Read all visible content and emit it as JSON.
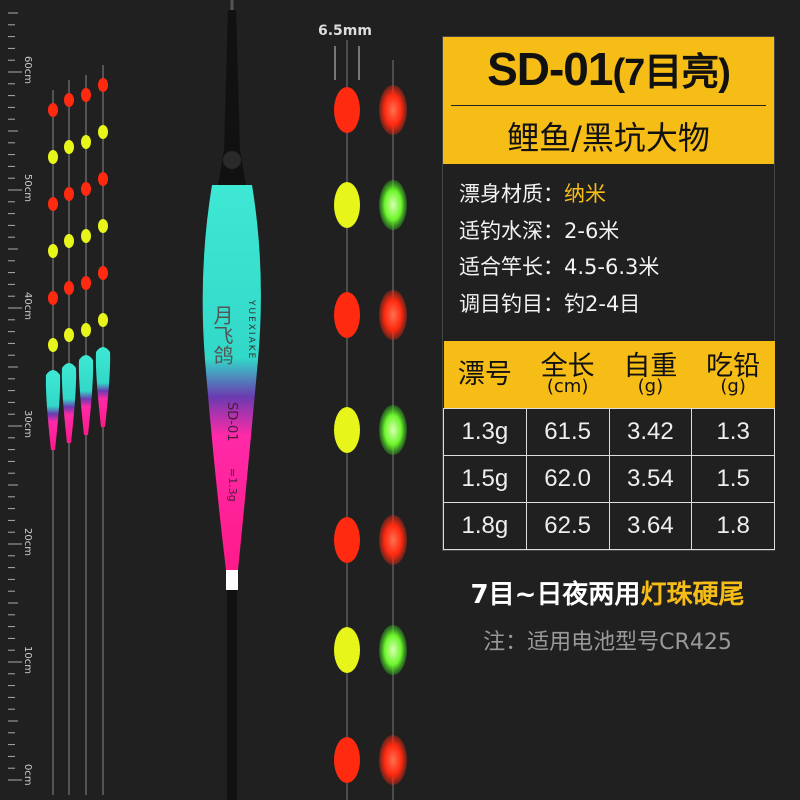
{
  "panel": {
    "model": "SD-01",
    "model_suffix": "(7目亮)",
    "target_fish": "鲤鱼/黑坑大物",
    "specs": [
      {
        "label": "漂身材质：",
        "value": "纳米"
      },
      {
        "label": "适钓水深：",
        "value": "2-6米"
      },
      {
        "label": "适合竿长：",
        "value": "4.5-6.3米"
      },
      {
        "label": "调目钓目：",
        "value": "钓2-4目"
      }
    ],
    "table": {
      "headers": [
        {
          "title": "漂号",
          "unit": ""
        },
        {
          "title": "全长",
          "unit": "(cm)"
        },
        {
          "title": "自重",
          "unit": "(g)"
        },
        {
          "title": "吃铅",
          "unit": "(g)"
        }
      ],
      "rows": [
        [
          "1.3g",
          "61.5",
          "3.42",
          "1.3"
        ],
        [
          "1.5g",
          "62.0",
          "3.54",
          "1.5"
        ],
        [
          "1.8g",
          "62.5",
          "3.64",
          "1.8"
        ]
      ]
    },
    "caption_white": "7目~日夜两用",
    "caption_yellow": "灯珠硬尾",
    "note": "注：适用电池型号CR425"
  },
  "bead_width_label": "6.5mm",
  "ruler_labels": [
    "60cm",
    "50cm",
    "40cm",
    "30cm",
    "20cm",
    "10cm",
    "0cm"
  ],
  "float_branding": {
    "brand_cn": "月飞鸽",
    "brand_en": "YUEXIAKE",
    "model": "SD-01",
    "weight": "≈1.3g"
  },
  "colors": {
    "accent": "#f7bd17",
    "background": "#202020",
    "bead_red": "#ff2a10",
    "bead_yellow": "#e8f51a",
    "glow_green": "#6cf52a",
    "float_cyan": "#2fe0cc",
    "float_pink": "#ff1a9a"
  }
}
